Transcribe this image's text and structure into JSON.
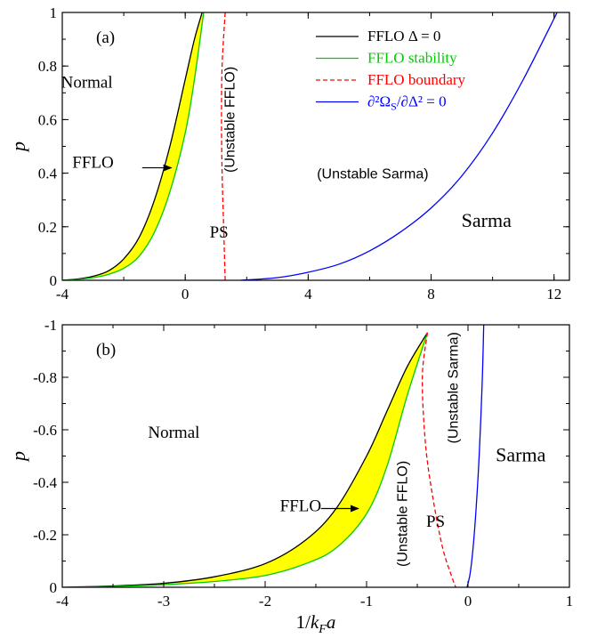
{
  "chart_data": [
    {
      "type": "line",
      "panel_label": "(a)",
      "xlabel": "",
      "ylabel": "p",
      "xlim": [
        -4,
        12.5
      ],
      "ylim": [
        0,
        1
      ],
      "xticks": [
        -4,
        0,
        4,
        8,
        12
      ],
      "xtick_labels": [
        "-4",
        "0",
        "4",
        "8",
        "12"
      ],
      "yticks": [
        0,
        0.2,
        0.4,
        0.6,
        0.8,
        1
      ],
      "ytick_labels": [
        "0",
        "0.2",
        "0.4",
        "0.6",
        "0.8",
        "1"
      ],
      "legend_position": "top-right",
      "legend": [
        {
          "label": "FFLO Δ = 0",
          "color": "#000000",
          "dash": "solid"
        },
        {
          "label": "FFLO stability",
          "color": "#00cc00",
          "dash": "solid"
        },
        {
          "label": "FFLO boundary",
          "color": "#ff0000",
          "dash": "dashed"
        },
        {
          "label": "∂²ΩS/∂Δ² = 0",
          "color": "#0000ff",
          "dash": "solid"
        }
      ],
      "series": [
        {
          "color": "#000000",
          "dash": "solid",
          "x": [
            -4,
            -3.5,
            -3,
            -2.5,
            -2,
            -1.5,
            -1,
            -0.5,
            0,
            0.3,
            0.55
          ],
          "y": [
            0,
            0.005,
            0.015,
            0.035,
            0.08,
            0.16,
            0.3,
            0.5,
            0.75,
            0.9,
            1.0
          ]
        },
        {
          "color": "#00cc00",
          "dash": "solid",
          "x": [
            -4,
            -3.5,
            -3,
            -2.5,
            -2,
            -1.5,
            -1,
            -0.5,
            0,
            0.3,
            0.6
          ],
          "y": [
            0,
            0.003,
            0.01,
            0.022,
            0.045,
            0.09,
            0.18,
            0.33,
            0.55,
            0.75,
            1.0
          ]
        },
        {
          "color": "#ff0000",
          "dash": "dashed",
          "x": [
            1.3,
            1.25,
            1.2,
            1.18,
            1.2,
            1.3
          ],
          "y": [
            0,
            0.2,
            0.4,
            0.6,
            0.8,
            1.0
          ]
        },
        {
          "color": "#0000ff",
          "dash": "solid",
          "x": [
            1.8,
            3,
            4,
            5,
            6,
            7,
            8,
            9,
            10,
            11,
            12.1
          ],
          "y": [
            0,
            0.01,
            0.03,
            0.06,
            0.11,
            0.18,
            0.27,
            0.39,
            0.55,
            0.75,
            1.0
          ]
        }
      ],
      "shaded_region": {
        "color": "#ffff00",
        "between": [
          0,
          1
        ]
      },
      "annotations": [
        {
          "text": "Normal",
          "x": -3.2,
          "y": 0.72,
          "style": "serif"
        },
        {
          "text": "FFLO",
          "x": -3.0,
          "y": 0.42,
          "style": "serif"
        },
        {
          "text": "(Unstable FFLO)",
          "x": 1.6,
          "y": 0.6,
          "style": "sans",
          "rotate": -90
        },
        {
          "text": "(Unstable Sarma)",
          "x": 6.1,
          "y": 0.38,
          "style": "sans"
        },
        {
          "text": "PS",
          "x": 1.1,
          "y": 0.16,
          "style": "serif"
        },
        {
          "text": "Sarma",
          "x": 9.8,
          "y": 0.2,
          "style": "serif"
        }
      ],
      "arrow": {
        "from_x": -1.4,
        "from_y": 0.42,
        "to_x": -0.45,
        "to_y": 0.42
      }
    },
    {
      "type": "line",
      "panel_label": "(b)",
      "xlabel": "1/kFa",
      "ylabel": "p",
      "xlim": [
        -4,
        1
      ],
      "ylim": [
        0,
        -1
      ],
      "xticks": [
        -4,
        -3,
        -2,
        -1,
        0,
        1
      ],
      "xtick_labels": [
        "-4",
        "-3",
        "-2",
        "-1",
        "0",
        "1"
      ],
      "yticks": [
        0,
        -0.2,
        -0.4,
        -0.6,
        -0.8,
        -1
      ],
      "ytick_labels": [
        "0",
        "-0.2",
        "-0.4",
        "-0.6",
        "-0.8",
        "-1"
      ],
      "series": [
        {
          "color": "#000000",
          "dash": "solid",
          "x": [
            -4,
            -3.5,
            -3,
            -2.5,
            -2,
            -1.6,
            -1.3,
            -1.0,
            -0.8,
            -0.6,
            -0.4
          ],
          "y": [
            0,
            -0.005,
            -0.015,
            -0.04,
            -0.09,
            -0.18,
            -0.3,
            -0.5,
            -0.67,
            -0.84,
            -0.97
          ]
        },
        {
          "color": "#00cc00",
          "dash": "solid",
          "x": [
            -4,
            -3.5,
            -3,
            -2.5,
            -2,
            -1.6,
            -1.3,
            -1.0,
            -0.8,
            -0.6,
            -0.4
          ],
          "y": [
            0,
            -0.003,
            -0.01,
            -0.022,
            -0.045,
            -0.09,
            -0.15,
            -0.28,
            -0.46,
            -0.73,
            -0.97
          ]
        },
        {
          "color": "#ff0000",
          "dash": "dashed",
          "x": [
            -0.4,
            -0.45,
            -0.42,
            -0.35,
            -0.25,
            -0.15,
            -0.12
          ],
          "y": [
            -0.97,
            -0.8,
            -0.55,
            -0.35,
            -0.15,
            -0.03,
            0
          ]
        },
        {
          "color": "#0000ff",
          "dash": "solid",
          "x": [
            -0.01,
            0.02,
            0.05,
            0.08,
            0.11,
            0.14,
            0.155
          ],
          "y": [
            0,
            -0.05,
            -0.15,
            -0.3,
            -0.5,
            -0.78,
            -1.0
          ]
        }
      ],
      "shaded_region": {
        "color": "#ffff00",
        "between": [
          0,
          1
        ]
      },
      "annotations": [
        {
          "text": "Normal",
          "x": -2.9,
          "y": -0.57,
          "style": "serif"
        },
        {
          "text": "FFLO",
          "x": -1.65,
          "y": -0.29,
          "style": "serif"
        },
        {
          "text": "(Unstable FFLO)",
          "x": -0.6,
          "y": -0.28,
          "style": "sans",
          "rotate": -90
        },
        {
          "text": "(Unstable Sarma)",
          "x": -0.1,
          "y": -0.76,
          "style": "sans",
          "rotate": -90
        },
        {
          "text": "PS",
          "x": -0.32,
          "y": -0.23,
          "style": "serif"
        },
        {
          "text": "Sarma",
          "x": 0.52,
          "y": -0.48,
          "style": "serif"
        }
      ],
      "arrow": {
        "from_x": -1.45,
        "from_y": -0.3,
        "to_x": -1.08,
        "to_y": -0.3
      }
    }
  ]
}
